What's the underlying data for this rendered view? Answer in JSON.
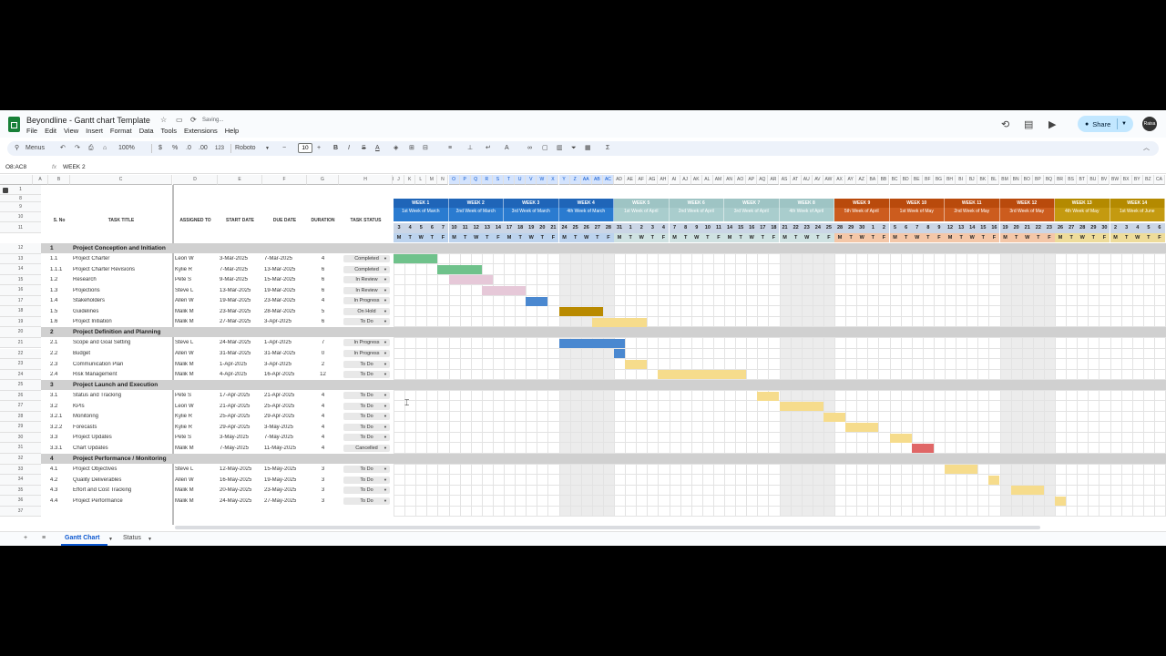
{
  "app": {
    "title": "Beyondline - Gantt chart Template",
    "saving": "Saving...",
    "menus": [
      "File",
      "Edit",
      "View",
      "Insert",
      "Format",
      "Data",
      "Tools",
      "Extensions",
      "Help"
    ],
    "share": "Share",
    "avatar": "Raisa"
  },
  "toolbar": {
    "menus": "Menus",
    "zoom": "100%",
    "currency": "$",
    "percent": "%",
    "dec_dec": ".0",
    "dec_inc": ".00",
    "number_fmt": "123",
    "font": "Roboto",
    "font_size": "10"
  },
  "formula": {
    "namebox": "O8:AC8",
    "fx": "fx",
    "value": "WEEK 2"
  },
  "col_letters": [
    "A",
    "B",
    "C",
    "D",
    "E",
    "F",
    "G",
    "H",
    "I",
    "J",
    "K",
    "L",
    "M",
    "N",
    "O",
    "P",
    "Q",
    "R",
    "S",
    "T",
    "U",
    "V",
    "W",
    "X",
    "Y",
    "Z",
    "AA",
    "AB",
    "AC",
    "AD",
    "AE",
    "AF",
    "AG",
    "AH",
    "AI",
    "AJ",
    "AK",
    "AL",
    "AM",
    "AN",
    "AO",
    "AP",
    "AQ",
    "AR",
    "AS",
    "AT",
    "AU",
    "AV",
    "AW",
    "AX",
    "AY",
    "AZ",
    "BA",
    "BB",
    "BC",
    "BD",
    "BE",
    "BF",
    "BG",
    "BH",
    "BI",
    "BJ",
    "BK",
    "BL",
    "BM",
    "BN",
    "BO",
    "BP",
    "BQ",
    "BR",
    "BS",
    "BT",
    "BU",
    "BV",
    "BW",
    "BX",
    "BY",
    "BZ",
    "CA"
  ],
  "headers": {
    "sno": "S. No",
    "title": "TASK TITLE",
    "assigned": "ASSIGNED TO",
    "start": "START DATE",
    "due": "DUE DATE",
    "duration": "DURATION",
    "status": "TASK STATUS"
  },
  "weeks": [
    {
      "label": "WEEK 1",
      "sub": "1st Week of March",
      "color": "#1f65b8",
      "sub_color": "#2a7bd0"
    },
    {
      "label": "WEEK 2",
      "sub": "2nd Week of March",
      "color": "#1f65b8",
      "sub_color": "#2a7bd0"
    },
    {
      "label": "WEEK 3",
      "sub": "3rd Week of March",
      "color": "#1f65b8",
      "sub_color": "#2a7bd0"
    },
    {
      "label": "WEEK 4",
      "sub": "4th Week of March",
      "color": "#1f65b8",
      "sub_color": "#2a7bd0"
    },
    {
      "label": "WEEK 5",
      "sub": "1st Week of April",
      "color": "#9ec4c4",
      "sub_color": "#a9cdcd"
    },
    {
      "label": "WEEK 6",
      "sub": "2nd Week of April",
      "color": "#9ec4c4",
      "sub_color": "#a9cdcd"
    },
    {
      "label": "WEEK 7",
      "sub": "3rd Week of April",
      "color": "#9ec4c4",
      "sub_color": "#a9cdcd"
    },
    {
      "label": "WEEK 8",
      "sub": "4th Week of April",
      "color": "#9ec4c4",
      "sub_color": "#a9cdcd"
    },
    {
      "label": "WEEK 9",
      "sub": "5th Week of April",
      "color": "#b94a0c",
      "sub_color": "#cc5c1e"
    },
    {
      "label": "WEEK 10",
      "sub": "1st Week of May",
      "color": "#b94a0c",
      "sub_color": "#cc5c1e"
    },
    {
      "label": "WEEK 11",
      "sub": "2nd Week of May",
      "color": "#b94a0c",
      "sub_color": "#cc5c1e"
    },
    {
      "label": "WEEK 12",
      "sub": "3rd Week of May",
      "color": "#b94a0c",
      "sub_color": "#cc5c1e"
    },
    {
      "label": "WEEK 13",
      "sub": "4th Week of May",
      "color": "#b48a00",
      "sub_color": "#c49a10"
    },
    {
      "label": "WEEK 14",
      "sub": "1st Week of June",
      "color": "#b48a00",
      "sub_color": "#c49a10"
    }
  ],
  "days": [
    "3",
    "4",
    "5",
    "6",
    "7",
    "10",
    "11",
    "12",
    "13",
    "14",
    "17",
    "18",
    "19",
    "20",
    "21",
    "24",
    "25",
    "26",
    "27",
    "28",
    "31",
    "1",
    "2",
    "3",
    "4",
    "7",
    "8",
    "9",
    "10",
    "11",
    "14",
    "15",
    "16",
    "17",
    "18",
    "21",
    "22",
    "23",
    "24",
    "25",
    "28",
    "29",
    "30",
    "1",
    "2",
    "5",
    "6",
    "7",
    "8",
    "9",
    "12",
    "13",
    "14",
    "15",
    "16",
    "19",
    "20",
    "21",
    "22",
    "23",
    "26",
    "27",
    "28",
    "29",
    "30",
    "2",
    "3",
    "4",
    "5",
    "6"
  ],
  "weekdays": [
    "M",
    "T",
    "W",
    "T",
    "F"
  ],
  "rows": [
    {
      "n": "12",
      "kind": "phase",
      "sno": "1",
      "title": "Project Conception and Initiation"
    },
    {
      "n": "13",
      "sno": "1.1",
      "title": "Project Charter",
      "who": "Leon W",
      "start": "3-Mar-2025",
      "due": "7-Mar-2025",
      "dur": "4",
      "status": "Completed",
      "bar": {
        "s": 0,
        "e": 4,
        "c": "#6fc28b"
      }
    },
    {
      "n": "14",
      "sno": "1.1.1",
      "title": "Project Charter Revisions",
      "who": "Kylie R",
      "start": "7-Mar-2025",
      "due": "13-Mar-2025",
      "dur": "6",
      "status": "Completed",
      "bar": {
        "s": 4,
        "e": 8,
        "c": "#6fc28b"
      }
    },
    {
      "n": "15",
      "sno": "1.2",
      "title": "Research",
      "who": "Pete S",
      "start": "9-Mar-2025",
      "due": "15-Mar-2025",
      "dur": "6",
      "status": "In Review",
      "bar": {
        "s": 5,
        "e": 9,
        "c": "#e6c8d8"
      }
    },
    {
      "n": "16",
      "sno": "1.3",
      "title": "Projections",
      "who": "Steve L",
      "start": "13-Mar-2025",
      "due": "19-Mar-2025",
      "dur": "6",
      "status": "In Review",
      "bar": {
        "s": 8,
        "e": 12,
        "c": "#e6c8d8"
      }
    },
    {
      "n": "17",
      "sno": "1.4",
      "title": "Stakeholders",
      "who": "Allen W",
      "start": "19-Mar-2025",
      "due": "23-Mar-2025",
      "dur": "4",
      "status": "In Progress",
      "bar": {
        "s": 12,
        "e": 14,
        "c": "#4a88d0"
      }
    },
    {
      "n": "18",
      "sno": "1.5",
      "title": "Guidelines",
      "who": "Malik M",
      "start": "23-Mar-2025",
      "due": "28-Mar-2025",
      "dur": "5",
      "status": "On Hold",
      "bar": {
        "s": 15,
        "e": 19,
        "c": "#b98a00"
      }
    },
    {
      "n": "19",
      "sno": "1.6",
      "title": "Project Initiation",
      "who": "Malik M",
      "start": "27-Mar-2025",
      "due": "3-Apr-2025",
      "dur": "6",
      "status": "To Do",
      "bar": {
        "s": 18,
        "e": 23,
        "c": "#f6dc8c"
      }
    },
    {
      "n": "20",
      "kind": "phase",
      "sno": "2",
      "title": "Project Definition and Planning"
    },
    {
      "n": "21",
      "sno": "2.1",
      "title": "Scope and Goal Setting",
      "who": "Steve L",
      "start": "24-Mar-2025",
      "due": "1-Apr-2025",
      "dur": "7",
      "status": "In Progress",
      "bar": {
        "s": 15,
        "e": 21,
        "c": "#4a88d0"
      }
    },
    {
      "n": "22",
      "sno": "2.2",
      "title": "Budget",
      "who": "Allen W",
      "start": "31-Mar-2025",
      "due": "31-Mar-2025",
      "dur": "0",
      "status": "In Progress",
      "bar": {
        "s": 20,
        "e": 20,
        "c": "#4a88d0"
      }
    },
    {
      "n": "23",
      "sno": "2.3",
      "title": "Communication Plan",
      "who": "Malik M",
      "start": "1-Apr-2025",
      "due": "3-Apr-2025",
      "dur": "2",
      "status": "To Do",
      "bar": {
        "s": 21,
        "e": 23,
        "c": "#f6dc8c"
      }
    },
    {
      "n": "24",
      "sno": "2.4",
      "title": "Risk Management",
      "who": "Malik M",
      "start": "4-Apr-2025",
      "due": "16-Apr-2025",
      "dur": "12",
      "status": "To Do",
      "bar": {
        "s": 24,
        "e": 32,
        "c": "#f6dc8c"
      }
    },
    {
      "n": "25",
      "kind": "phase",
      "sno": "3",
      "title": "Project Launch and Execution"
    },
    {
      "n": "26",
      "sno": "3.1",
      "title": "Status and Tracking",
      "who": "Pete S",
      "start": "17-Apr-2025",
      "due": "21-Apr-2025",
      "dur": "4",
      "status": "To Do",
      "bar": {
        "s": 33,
        "e": 35,
        "c": "#f6dc8c"
      }
    },
    {
      "n": "27",
      "sno": "3.2",
      "title": "KPIs",
      "who": "Leon W",
      "start": "21-Apr-2025",
      "due": "25-Apr-2025",
      "dur": "4",
      "status": "To Do",
      "bar": {
        "s": 35,
        "e": 39,
        "c": "#f6dc8c"
      }
    },
    {
      "n": "28",
      "sno": "3.2.1",
      "title": "Monitoring",
      "who": "Kylie R",
      "start": "25-Apr-2025",
      "due": "29-Apr-2025",
      "dur": "4",
      "status": "To Do",
      "bar": {
        "s": 39,
        "e": 41,
        "c": "#f6dc8c"
      }
    },
    {
      "n": "29",
      "sno": "3.2.2",
      "title": "Forecasts",
      "who": "Kylie R",
      "start": "29-Apr-2025",
      "due": "3-May-2025",
      "dur": "4",
      "status": "To Do",
      "bar": {
        "s": 41,
        "e": 44,
        "c": "#f6dc8c"
      }
    },
    {
      "n": "30",
      "sno": "3.3",
      "title": "Project Updates",
      "who": "Pete S",
      "start": "3-May-2025",
      "due": "7-May-2025",
      "dur": "4",
      "status": "To Do",
      "bar": {
        "s": 45,
        "e": 47,
        "c": "#f6dc8c"
      }
    },
    {
      "n": "31",
      "sno": "3.3.1",
      "title": "Chart Updates",
      "who": "Malik M",
      "start": "7-May-2025",
      "due": "11-May-2025",
      "dur": "4",
      "status": "Cancelled",
      "bar": {
        "s": 47,
        "e": 49,
        "c": "#e06666"
      }
    },
    {
      "n": "32",
      "kind": "phase",
      "sno": "4",
      "title": "Project Performance / Monitoring"
    },
    {
      "n": "33",
      "sno": "4.1",
      "title": "Project Objectives",
      "who": "Steve L",
      "start": "12-May-2025",
      "due": "15-May-2025",
      "dur": "3",
      "status": "To Do",
      "bar": {
        "s": 50,
        "e": 53,
        "c": "#f6dc8c"
      }
    },
    {
      "n": "34",
      "sno": "4.2",
      "title": "Quality Deliverables",
      "who": "Allen W",
      "start": "16-May-2025",
      "due": "19-May-2025",
      "dur": "3",
      "status": "To Do",
      "bar": {
        "s": 54,
        "e": 55,
        "c": "#f6dc8c"
      }
    },
    {
      "n": "35",
      "sno": "4.3",
      "title": "Effort and Cost Tracking",
      "who": "Malik M",
      "start": "20-May-2025",
      "due": "23-May-2025",
      "dur": "3",
      "status": "To Do",
      "bar": {
        "s": 56,
        "e": 59,
        "c": "#f6dc8c"
      }
    },
    {
      "n": "36",
      "sno": "4.4",
      "title": "Project Performance",
      "who": "Malik M",
      "start": "24-May-2025",
      "due": "27-May-2025",
      "dur": "3",
      "status": "To Do",
      "bar": {
        "s": 60,
        "e": 61,
        "c": "#f6dc8c"
      }
    },
    {
      "n": "37",
      "kind": "empty"
    }
  ],
  "top_rows": [
    "1",
    "8",
    "9",
    "10",
    "11"
  ],
  "tabs": {
    "add": "+",
    "all": "≡",
    "active": "Gantt Chart",
    "other": "Status"
  }
}
